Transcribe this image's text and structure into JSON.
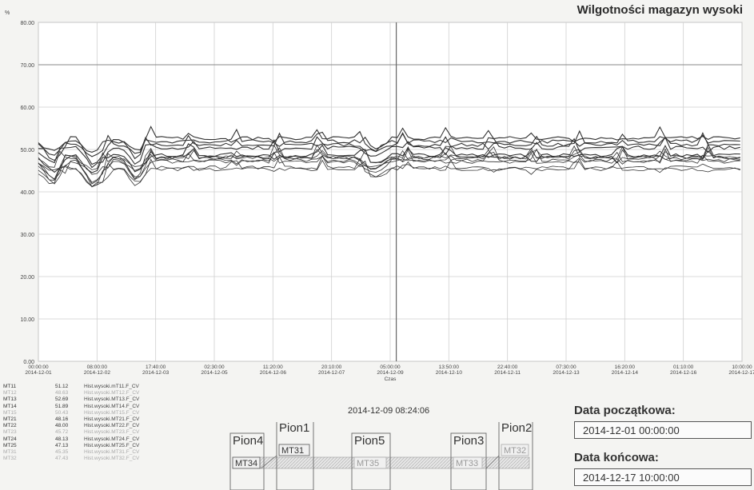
{
  "chart_data": {
    "type": "line",
    "title": "Wilgotności magazyn wysoki",
    "ylabel": "%",
    "xlabel": "Czas",
    "ylim": [
      0,
      80
    ],
    "yticks": [
      "0.00",
      "10.00",
      "20.00",
      "30.00",
      "40.00",
      "50.00",
      "60.00",
      "70.00",
      "80.00"
    ],
    "xticks": [
      {
        "time": "00:00:00",
        "date": "2014-12-01"
      },
      {
        "time": "08:00:00",
        "date": "2014-12-02"
      },
      {
        "time": "17:40:00",
        "date": "2014-12-03"
      },
      {
        "time": "02:30:00",
        "date": "2014-12-05"
      },
      {
        "time": "11:20:00",
        "date": "2014-12-06"
      },
      {
        "time": "20:10:00",
        "date": "2014-12-07"
      },
      {
        "time": "05:00:00",
        "date": "2014-12-09"
      },
      {
        "time": "13:50:00",
        "date": "2014-12-10"
      },
      {
        "time": "22:40:00",
        "date": "2014-12-11"
      },
      {
        "time": "07:30:00",
        "date": "2014-12-13"
      },
      {
        "time": "16:20:00",
        "date": "2014-12-14"
      },
      {
        "time": "01:10:00",
        "date": "2014-12-16"
      },
      {
        "time": "10:00:00",
        "date": "2014-12-17"
      }
    ],
    "grid": true,
    "cursor_label": "2014-12-09 08:24:06",
    "series": [
      {
        "name": "MT11",
        "level": 51.12
      },
      {
        "name": "MT12",
        "level": 48.63
      },
      {
        "name": "MT13",
        "level": 52.69
      },
      {
        "name": "MT14",
        "level": 51.89
      },
      {
        "name": "MT15",
        "level": 50.43
      },
      {
        "name": "MT21",
        "level": 48.16
      },
      {
        "name": "MT22",
        "level": 48.0
      },
      {
        "name": "MT23",
        "level": 45.72
      },
      {
        "name": "MT24",
        "level": 48.13
      },
      {
        "name": "MT25",
        "level": 47.13
      },
      {
        "name": "MT31",
        "level": 45.35
      },
      {
        "name": "MT32",
        "level": 47.43
      }
    ]
  },
  "legend": [
    {
      "name": "MT11",
      "value": "51.12",
      "tag": "Hist.wysoki.mT11.F_CV",
      "faded": false
    },
    {
      "name": "MT12",
      "value": "48.63",
      "tag": "Hist.wysoki.MT12.F_CV",
      "faded": true
    },
    {
      "name": "MT13",
      "value": "52.69",
      "tag": "Hist.wysoki.MT13.F_CV",
      "faded": false
    },
    {
      "name": "MT14",
      "value": "51.89",
      "tag": "Hist.wysoki.MT14.F_CV",
      "faded": false
    },
    {
      "name": "MT15",
      "value": "50.43",
      "tag": "Hist.wysoki.MT15.F_CV",
      "faded": true
    },
    {
      "name": "MT21",
      "value": "48.16",
      "tag": "Hist.wysoki.MT21.F_CV",
      "faded": false
    },
    {
      "name": "MT22",
      "value": "48.00",
      "tag": "Hist.wysoki.MT22.F_CV",
      "faded": false
    },
    {
      "name": "MT23",
      "value": "45.72",
      "tag": "Hist.wysoki.MT23.F_CV",
      "faded": true
    },
    {
      "name": "MT24",
      "value": "48.13",
      "tag": "Hist.wysoki.MT24.F_CV",
      "faded": false
    },
    {
      "name": "MT25",
      "value": "47.13",
      "tag": "Hist.wysoki.MT25.F_CV",
      "faded": false
    },
    {
      "name": "MT31",
      "value": "45.35",
      "tag": "Hist.wysoki.MT31.F_CV",
      "faded": true
    },
    {
      "name": "MT32",
      "value": "47.43",
      "tag": "Hist.wysoki.MT32.F_CV",
      "faded": true
    }
  ],
  "dates": {
    "start_label": "Data początkowa:",
    "start_value": "2014-12-01 00:00:00",
    "end_label": "Data końcowa:",
    "end_value": "2014-12-17 10:00:00"
  },
  "layout": {
    "piony": [
      "Pion4",
      "Pion1",
      "Pion5",
      "Pion3",
      "Pion2"
    ],
    "sensors": [
      "MT34",
      "MT31",
      "MT35",
      "MT33",
      "MT32"
    ]
  },
  "colors": {
    "series": "#333333",
    "grid": "#cfcfcf",
    "background": "#f4f4f2",
    "cursor": "#666666"
  }
}
